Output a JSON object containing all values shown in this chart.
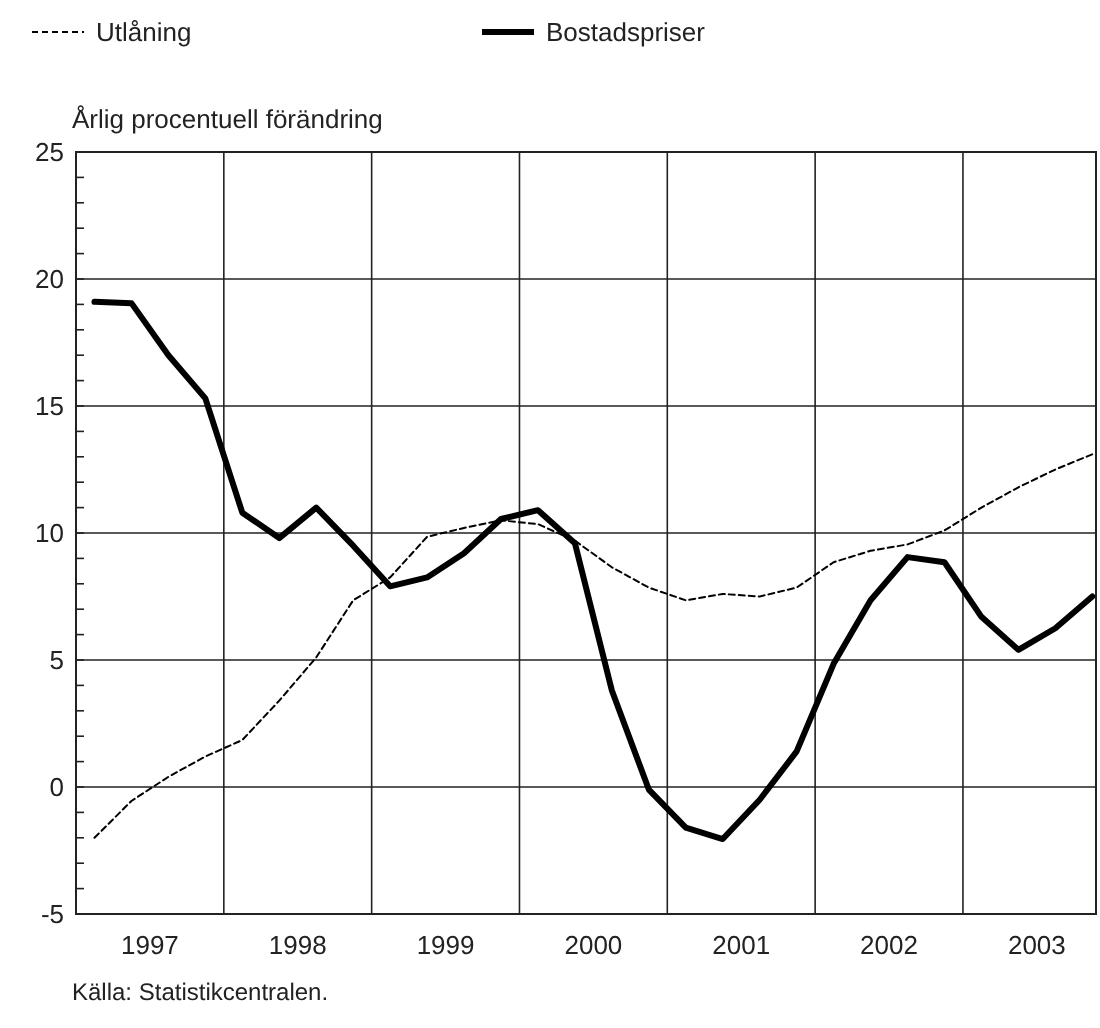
{
  "chart_data": {
    "type": "line",
    "ylabel": "Årlig procentuell förändring",
    "annotations": [
      "Källa: Statistikcentralen."
    ],
    "legend": "top left",
    "grid": true,
    "x": [
      1997.125,
      1997.375,
      1997.625,
      1997.875,
      1998.125,
      1998.375,
      1998.625,
      1998.875,
      1999.125,
      1999.375,
      1999.625,
      1999.875,
      2000.125,
      2000.375,
      2000.625,
      2000.875,
      2001.125,
      2001.375,
      2001.625,
      2001.875,
      2002.125,
      2002.375,
      2002.625,
      2002.875,
      2003.125,
      2003.375,
      2003.625,
      2003.875
    ],
    "xlim": [
      1997,
      2003.9
    ],
    "xticks": [
      {
        "value": 1997.5,
        "label": "1997"
      },
      {
        "value": 1998,
        "label": null
      },
      {
        "value": 1998.5,
        "label": "1998"
      },
      {
        "value": 1999,
        "label": null
      },
      {
        "value": 1999.5,
        "label": "1999"
      },
      {
        "value": 2000,
        "label": null
      },
      {
        "value": 2000.5,
        "label": "2000"
      },
      {
        "value": 2001,
        "label": null
      },
      {
        "value": 2001.5,
        "label": "2001"
      },
      {
        "value": 2002,
        "label": null
      },
      {
        "value": 2002.5,
        "label": "2002"
      },
      {
        "value": 2003,
        "label": null
      },
      {
        "value": 2003.5,
        "label": "2003"
      }
    ],
    "ylim": [
      -5,
      25
    ],
    "yticks": [
      -5,
      {
        "value": -4,
        "label": null
      },
      {
        "value": -3,
        "label": null
      },
      {
        "value": -2,
        "label": null
      },
      {
        "value": -1,
        "label": null
      },
      0,
      {
        "value": 1,
        "label": null
      },
      {
        "value": 2,
        "label": null
      },
      {
        "value": 3,
        "label": null
      },
      {
        "value": 4,
        "label": null
      },
      5,
      {
        "value": 6,
        "label": null
      },
      {
        "value": 7,
        "label": null
      },
      {
        "value": 8,
        "label": null
      },
      {
        "value": 9,
        "label": null
      },
      10,
      {
        "value": 11,
        "label": null
      },
      {
        "value": 12,
        "label": null
      },
      {
        "value": 13,
        "label": null
      },
      {
        "value": 14,
        "label": null
      },
      15,
      {
        "value": 16,
        "label": null
      },
      {
        "value": 17,
        "label": null
      },
      {
        "value": 18,
        "label": null
      },
      {
        "value": 19,
        "label": null
      },
      20,
      {
        "value": 21,
        "label": null
      },
      {
        "value": 22,
        "label": null
      },
      {
        "value": 23,
        "label": null
      },
      {
        "value": 24,
        "label": null
      },
      25
    ],
    "series": [
      {
        "name": "Utlåning",
        "color": "#000000",
        "line_style": "dashed",
        "values": [
          -2.0,
          -0.55,
          0.4,
          1.2,
          1.85,
          3.4,
          5.1,
          7.35,
          8.25,
          9.85,
          10.2,
          10.5,
          10.35,
          9.7,
          8.65,
          7.85,
          7.35,
          7.6,
          7.5,
          7.85,
          8.85,
          9.3,
          9.55,
          10.1,
          11.0,
          11.8,
          12.5,
          13.1
        ]
      },
      {
        "name": "Bostadspriser",
        "color": "#000000",
        "line_style": "solid",
        "values": [
          19.1,
          19.05,
          17.0,
          15.3,
          10.8,
          9.8,
          11.0,
          9.5,
          7.9,
          8.25,
          9.2,
          10.55,
          10.9,
          9.6,
          3.8,
          -0.1,
          -1.6,
          -2.05,
          -0.5,
          1.4,
          4.85,
          7.35,
          9.05,
          8.85,
          6.7,
          5.4,
          6.25,
          7.5
        ]
      }
    ]
  }
}
